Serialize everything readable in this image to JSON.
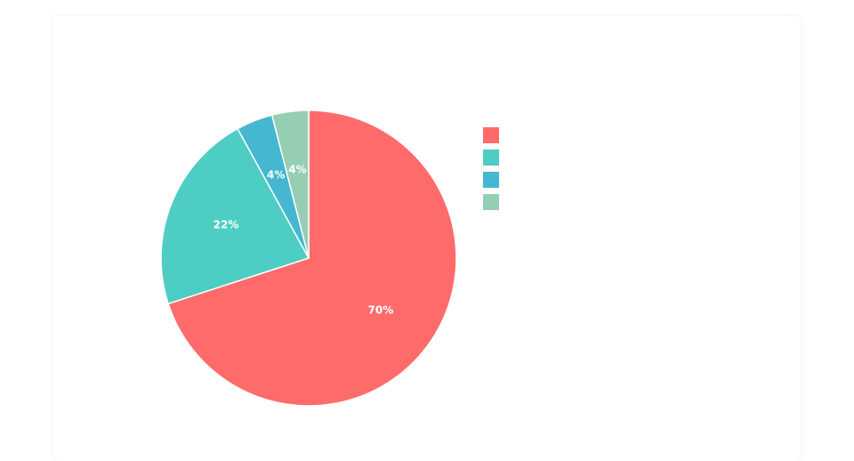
{
  "chart_data": {
    "type": "pie",
    "categories": [
      null,
      null,
      null,
      null
    ],
    "values": [
      70,
      22,
      4,
      4
    ],
    "value_labels": [
      "70%",
      "22%",
      "4%",
      "4%"
    ],
    "colors": [
      "#ff6b6b",
      "#4ecdc4",
      "#45b7d1",
      "#96ceb4"
    ]
  }
}
